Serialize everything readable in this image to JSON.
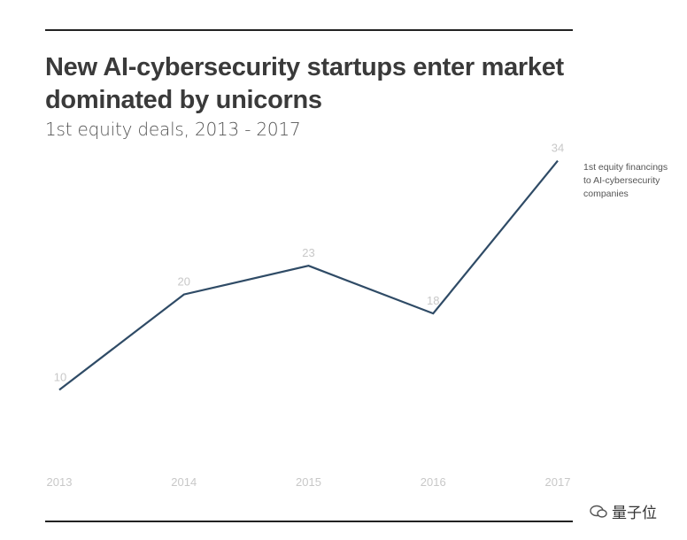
{
  "title_lines": [
    "New AI-cybersecurity startups enter market",
    "dominated by unicorns"
  ],
  "subtitle": "1st equity deals, 2013 - 2017",
  "watermark": "量子位",
  "chart_data": {
    "type": "line",
    "title": "New AI-cybersecurity startups enter market dominated by unicorns",
    "subtitle": "1st equity deals, 2013 - 2017",
    "x": [
      "2013",
      "2014",
      "2015",
      "2016",
      "2017"
    ],
    "series": [
      {
        "name": "1st equity financings to AI-cybersecurity companies",
        "values": [
          10,
          20,
          23,
          18,
          34
        ],
        "color": "#2f4b66"
      }
    ],
    "data_labels": [
      "10",
      "20",
      "23",
      "18",
      "34"
    ],
    "ylim": [
      8,
      36
    ],
    "grid": false,
    "legend": "right-inline",
    "xlabel": "",
    "ylabel": ""
  }
}
